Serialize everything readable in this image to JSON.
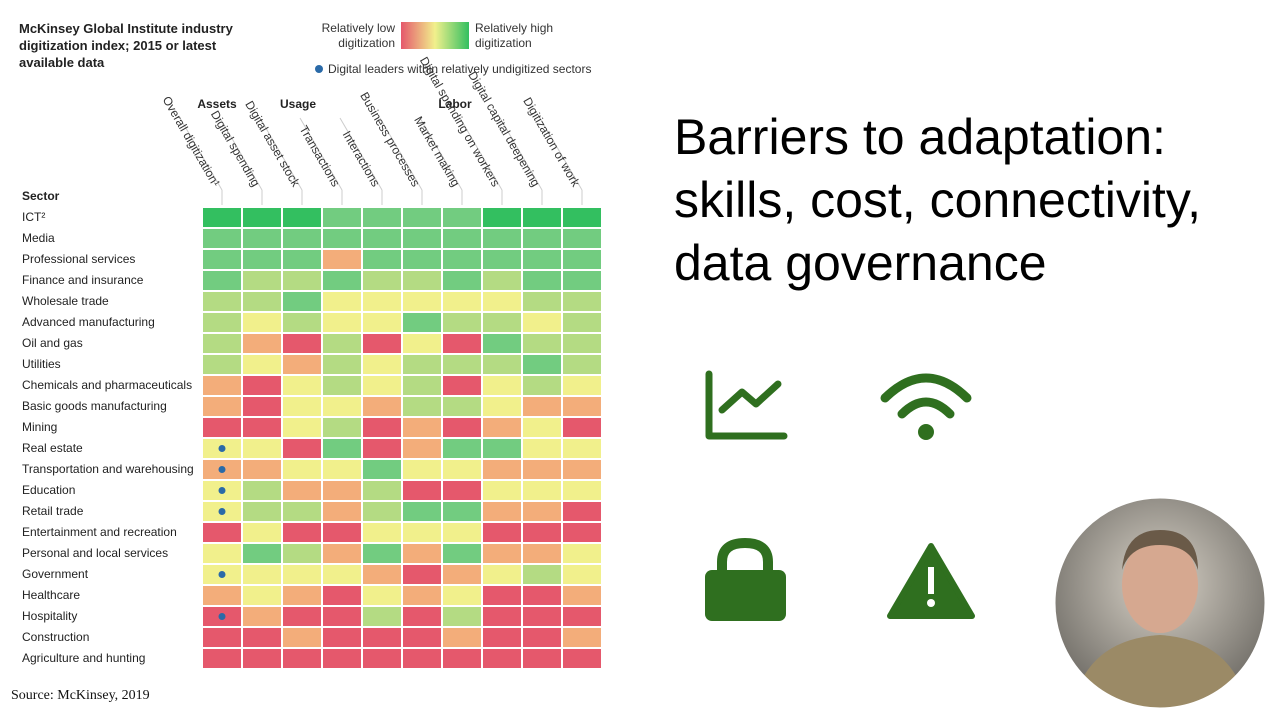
{
  "chart_data": {
    "type": "heatmap",
    "title": "McKinsey Global Institute industry digitization index; 2015 or latest available data",
    "legend_low": "Relatively low digitization",
    "legend_high": "Relatively high digitization",
    "legend_dot": "Digital leaders within relatively undigitized sectors",
    "row_header": "Sector",
    "column_groups": [
      "Assets",
      "Usage",
      "Labor"
    ],
    "columns": [
      "Overall digitization¹",
      "Digital spending",
      "Digital asset stock",
      "Transactions",
      "Interactions",
      "Business processes",
      "Market making",
      "Digital spending on workers",
      "Digital capital deepening",
      "Digitization of work"
    ],
    "rows": [
      "ICT²",
      "Media",
      "Professional services",
      "Finance and insurance",
      "Wholesale trade",
      "Advanced manufacturing",
      "Oil and gas",
      "Utilities",
      "Chemicals and pharmaceuticals",
      "Basic goods manufacturing",
      "Mining",
      "Real estate",
      "Transportation and warehousing",
      "Education",
      "Retail trade",
      "Entertainment and recreation",
      "Personal and local services",
      "Government",
      "Healthcare",
      "Hospitality",
      "Construction",
      "Agriculture and hunting"
    ],
    "colors": [
      "#e5586c",
      "#f3ad7a",
      "#f1f08c",
      "#b4db83",
      "#72cc80",
      "#33bf60"
    ],
    "values": [
      [
        6,
        6,
        6,
        5,
        5,
        5,
        5,
        6,
        6,
        6
      ],
      [
        5,
        5,
        5,
        5,
        5,
        5,
        5,
        5,
        5,
        5
      ],
      [
        5,
        5,
        5,
        2,
        5,
        5,
        5,
        5,
        5,
        5
      ],
      [
        5,
        4,
        4,
        5,
        4,
        4,
        5,
        4,
        5,
        5
      ],
      [
        4,
        4,
        5,
        3,
        3,
        3,
        3,
        3,
        4,
        4
      ],
      [
        4,
        3,
        4,
        3,
        3,
        5,
        4,
        4,
        3,
        4
      ],
      [
        4,
        2,
        1,
        4,
        1,
        3,
        1,
        5,
        4,
        4
      ],
      [
        4,
        3,
        2,
        4,
        3,
        4,
        4,
        4,
        5,
        4
      ],
      [
        2,
        1,
        3,
        4,
        3,
        4,
        1,
        3,
        4,
        3
      ],
      [
        2,
        1,
        3,
        3,
        2,
        4,
        4,
        3,
        2,
        2
      ],
      [
        1,
        1,
        3,
        4,
        1,
        2,
        1,
        2,
        3,
        1
      ],
      [
        3,
        3,
        1,
        5,
        1,
        2,
        5,
        5,
        3,
        3
      ],
      [
        2,
        2,
        3,
        3,
        5,
        3,
        3,
        2,
        2,
        2
      ],
      [
        3,
        4,
        2,
        2,
        4,
        1,
        1,
        3,
        3,
        3
      ],
      [
        3,
        4,
        4,
        2,
        4,
        5,
        5,
        2,
        2,
        1
      ],
      [
        1,
        3,
        1,
        1,
        3,
        3,
        3,
        1,
        1,
        1
      ],
      [
        3,
        5,
        4,
        2,
        5,
        2,
        5,
        2,
        2,
        3
      ],
      [
        3,
        3,
        3,
        3,
        2,
        1,
        2,
        3,
        4,
        3
      ],
      [
        2,
        3,
        2,
        1,
        3,
        2,
        3,
        1,
        1,
        2
      ],
      [
        1,
        2,
        1,
        1,
        4,
        1,
        4,
        1,
        1,
        1
      ],
      [
        1,
        1,
        2,
        1,
        1,
        1,
        2,
        1,
        1,
        2
      ],
      [
        1,
        1,
        1,
        1,
        1,
        1,
        1,
        1,
        1,
        1
      ]
    ],
    "leaders": [
      false,
      false,
      false,
      false,
      false,
      false,
      false,
      false,
      false,
      false,
      false,
      true,
      true,
      true,
      true,
      false,
      false,
      true,
      false,
      true,
      false,
      false
    ],
    "leader_color": "#2a6aa8",
    "source": "Source: McKinsey, 2019"
  },
  "slide": {
    "title_lines": [
      "Barriers to adaptation:",
      "skills, cost, connectivity,",
      "data governance"
    ]
  }
}
